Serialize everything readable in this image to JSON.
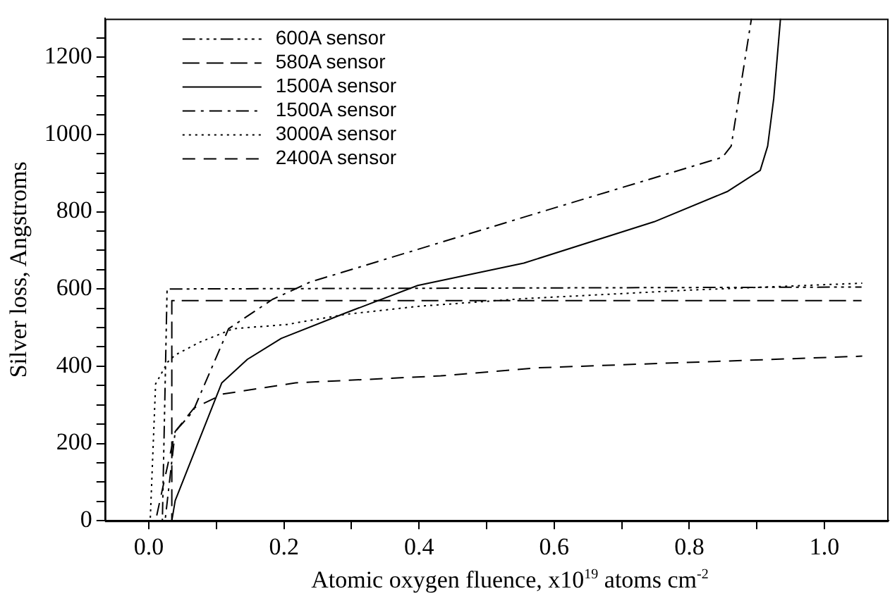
{
  "chart_data": {
    "type": "line",
    "xlabel": "Atomic oxygen fluence, x10$^{19}$ atoms cm$^{-2}$",
    "ylabel": "Silver loss, Angstroms",
    "xlim": [
      -0.065,
      1.095
    ],
    "ylim": [
      0,
      1300
    ],
    "xticks": [
      {
        "value": 0,
        "label": "0.0"
      },
      {
        "value": 0.1,
        "label": null
      },
      {
        "value": 0.2,
        "label": "0.2"
      },
      {
        "value": 0.3,
        "label": null
      },
      {
        "value": 0.4,
        "label": "0.4"
      },
      {
        "value": 0.5,
        "label": null
      },
      {
        "value": 0.6,
        "label": "0.6"
      },
      {
        "value": 0.7,
        "label": null
      },
      {
        "value": 0.8,
        "label": "0.8"
      },
      {
        "value": 0.9,
        "label": null
      },
      {
        "value": 1,
        "label": "1.0"
      }
    ],
    "yticks": [
      0,
      {
        "value": 50,
        "label": null
      },
      {
        "value": 100,
        "label": null
      },
      {
        "value": 150,
        "label": null
      },
      200,
      {
        "value": 250,
        "label": null
      },
      {
        "value": 300,
        "label": null
      },
      {
        "value": 350,
        "label": null
      },
      400,
      {
        "value": 450,
        "label": null
      },
      {
        "value": 500,
        "label": null
      },
      {
        "value": 550,
        "label": null
      },
      600,
      {
        "value": 650,
        "label": null
      },
      {
        "value": 700,
        "label": null
      },
      {
        "value": 750,
        "label": null
      },
      800,
      {
        "value": 850,
        "label": null
      },
      {
        "value": 900,
        "label": null
      },
      {
        "value": 950,
        "label": null
      },
      1000,
      {
        "value": 1050,
        "label": null
      },
      {
        "value": 1100,
        "label": null
      },
      {
        "value": 1150,
        "label": null
      },
      1200,
      {
        "value": 1250,
        "label": null
      }
    ],
    "grid": false,
    "legend": "top left",
    "marker": "none",
    "series": [
      {
        "name": "600A sensor",
        "color": "#000000",
        "line_style": "dashdotdot",
        "x": [
          0.02,
          0.027,
          1.055
        ],
        "values": [
          0,
          600,
          605
        ]
      },
      {
        "name": "580A sensor",
        "color": "#000000",
        "line_style": "longdash",
        "x": [
          0.034,
          0.034,
          1.055
        ],
        "values": [
          0,
          570,
          570
        ]
      },
      {
        "name": "1500A sensor",
        "color": "#000000",
        "line_style": "solid",
        "x": [
          0.034,
          0.039,
          0.108,
          0.146,
          0.196,
          0.29,
          0.398,
          0.555,
          0.748,
          0.856,
          0.905,
          0.916,
          0.925,
          0.935
        ],
        "values": [
          0,
          52,
          357,
          418,
          472,
          537,
          609,
          667,
          774,
          852,
          907,
          970,
          1093,
          1300
        ]
      },
      {
        "name": "1500A sensor",
        "color": "#000000",
        "line_style": "dashdot",
        "x": [
          0.024,
          0.039,
          0.065,
          0.118,
          0.183,
          0.239,
          0.576,
          0.849,
          0.862,
          0.892
        ],
        "values": [
          0,
          231,
          282,
          497,
          573,
          618,
          797,
          941,
          970,
          1300
        ]
      },
      {
        "name": "3000A sensor",
        "color": "#000000",
        "line_style": "dotted",
        "x": [
          0.002,
          0.01,
          0.028,
          0.039,
          0.075,
          0.125,
          0.204,
          0.29,
          0.398,
          0.555,
          0.8,
          1.056
        ],
        "values": [
          0,
          354,
          411,
          429,
          462,
          497,
          508,
          534,
          555,
          575,
          597,
          615
        ]
      },
      {
        "name": "2400A sensor",
        "color": "#000000",
        "line_style": "dashed",
        "x": [
          0.01,
          0.024,
          0.039,
          0.067,
          0.11,
          0.217,
          0.432,
          0.576,
          1.056
        ],
        "values": [
          0,
          113,
          231,
          292,
          328,
          357,
          375,
          396,
          426
        ]
      }
    ]
  }
}
